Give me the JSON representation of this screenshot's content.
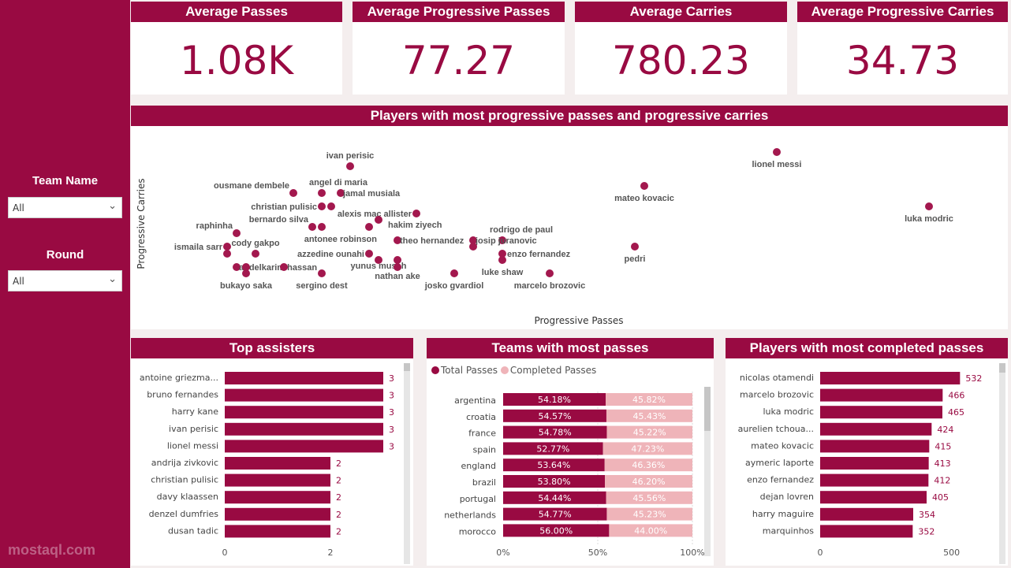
{
  "filters": [
    {
      "label": "Team Name",
      "value": "All"
    },
    {
      "label": "Round",
      "value": "All"
    }
  ],
  "kpis": [
    {
      "title": "Average Passes",
      "value": "1.08K"
    },
    {
      "title": "Average Progressive Passes",
      "value": "77.27"
    },
    {
      "title": "Average Carries",
      "value": "780.23"
    },
    {
      "title": "Average Progressive Carries",
      "value": "34.73"
    }
  ],
  "colors": {
    "primary": "#990a42",
    "secondary": "#efb4b9",
    "dot": "#a3184e"
  },
  "chart_data": [
    {
      "type": "scatter",
      "title": "Players with most progressive passes and progressive carries",
      "xlabel": "Progressive Passes",
      "ylabel": "Progressive Carries",
      "note": "values estimated on relative scale (no axis ticks shown)",
      "xlim": [
        0,
        110
      ],
      "ylim": [
        0,
        100
      ],
      "points": [
        {
          "label": "ivan perisic",
          "x": 26.4,
          "y": 84.5,
          "pos": "above"
        },
        {
          "label": "ousmane dembele",
          "x": 19.2,
          "y": 67.5,
          "pos": "aboveleft"
        },
        {
          "label": "angel di maria",
          "x": 22.8,
          "y": 67.5,
          "pos": "aboveright"
        },
        {
          "label": "jamal musiala",
          "x": 25.2,
          "y": 67.5,
          "pos": "right"
        },
        {
          "label": "christian pulisic",
          "x": 22.8,
          "y": 59,
          "pos": "left"
        },
        {
          "label": "",
          "x": 24.0,
          "y": 59,
          "pos": "none"
        },
        {
          "label": "alexis mac allister",
          "x": 34.8,
          "y": 54.5,
          "pos": "left"
        },
        {
          "label": "hakim ziyech",
          "x": 30.0,
          "y": 50.5,
          "pos": "belowright"
        },
        {
          "label": "bernardo silva",
          "x": 21.6,
          "y": 46,
          "pos": "aboveleft"
        },
        {
          "label": "",
          "x": 22.8,
          "y": 46,
          "pos": "none"
        },
        {
          "label": "antonee robinson",
          "x": 28.8,
          "y": 46,
          "pos": "belowleft"
        },
        {
          "label": "theo hernandez",
          "x": 32.4,
          "y": 37.5,
          "pos": "aboveright"
        },
        {
          "label": "raphinha",
          "x": 12.0,
          "y": 42,
          "pos": "aboveleft"
        },
        {
          "label": "ismaila sarr",
          "x": 10.8,
          "y": 33.5,
          "pos": "left"
        },
        {
          "label": "",
          "x": 10.8,
          "y": 29,
          "pos": "none"
        },
        {
          "label": "cody gakpo",
          "x": 14.4,
          "y": 29,
          "pos": "above"
        },
        {
          "label": "rodrigo de paul",
          "x": 45.7,
          "y": 37.5,
          "pos": "aboveright"
        },
        {
          "label": "josip juranovic",
          "x": 42.0,
          "y": 37.5,
          "pos": "right"
        },
        {
          "label": "",
          "x": 42.0,
          "y": 33.5,
          "pos": "none"
        },
        {
          "label": "enzo fernandez",
          "x": 45.7,
          "y": 29,
          "pos": "left"
        },
        {
          "label": "luke shaw",
          "x": 45.7,
          "y": 25,
          "pos": "below"
        },
        {
          "label": "azzedine ounahi",
          "x": 28.8,
          "y": 29,
          "pos": "right"
        },
        {
          "label": "yunus musah",
          "x": 30.0,
          "y": 25,
          "pos": "below"
        },
        {
          "label": "",
          "x": 32.4,
          "y": 25,
          "pos": "none"
        },
        {
          "label": "nathan ake",
          "x": 32.4,
          "y": 20.5,
          "pos": "below"
        },
        {
          "label": "abdelkarim hassan",
          "x": 12.0,
          "y": 20.5,
          "pos": "right"
        },
        {
          "label": "",
          "x": 13.2,
          "y": 20.5,
          "pos": "none"
        },
        {
          "label": "",
          "x": 18.0,
          "y": 20.5,
          "pos": "none"
        },
        {
          "label": "bukayo saka",
          "x": 13.2,
          "y": 16.5,
          "pos": "below"
        },
        {
          "label": "sergino dest",
          "x": 22.8,
          "y": 16.5,
          "pos": "below"
        },
        {
          "label": "josko gvardiol",
          "x": 39.6,
          "y": 16.5,
          "pos": "below"
        },
        {
          "label": "marcelo brozovic",
          "x": 51.7,
          "y": 16.5,
          "pos": "below"
        },
        {
          "label": "mateo kovacic",
          "x": 63.7,
          "y": 72,
          "pos": "below"
        },
        {
          "label": "lionel messi",
          "x": 80.5,
          "y": 93.5,
          "pos": "below"
        },
        {
          "label": "luka modric",
          "x": 99.8,
          "y": 59,
          "pos": "below"
        },
        {
          "label": "pedri",
          "x": 62.5,
          "y": 33.5,
          "pos": "below"
        }
      ]
    },
    {
      "type": "bar",
      "title": "Top assisters",
      "categories": [
        "antoine griezma...",
        "bruno fernandes",
        "harry kane",
        "ivan perisic",
        "lionel messi",
        "andrija zivkovic",
        "christian pulisic",
        "davy klaassen",
        "denzel dumfries",
        "dusan tadic"
      ],
      "values": [
        3,
        3,
        3,
        3,
        3,
        2,
        2,
        2,
        2,
        2
      ],
      "xticks": [
        "0",
        "2"
      ],
      "xlim": [
        0,
        3.5
      ]
    },
    {
      "type": "bar",
      "title": "Teams with most passes",
      "stacked100": true,
      "legend": [
        "Total Passes",
        "Completed Passes"
      ],
      "categories": [
        "argentina",
        "croatia",
        "france",
        "spain",
        "england",
        "brazil",
        "portugal",
        "netherlands",
        "morocco"
      ],
      "series": [
        {
          "name": "Total Passes",
          "values": [
            "54.18%",
            "54.57%",
            "54.78%",
            "52.77%",
            "53.64%",
            "53.80%",
            "54.44%",
            "54.77%",
            "56.00%"
          ]
        },
        {
          "name": "Completed Passes",
          "values": [
            "45.82%",
            "45.43%",
            "45.22%",
            "47.23%",
            "46.36%",
            "46.20%",
            "45.56%",
            "45.23%",
            "44.00%"
          ]
        }
      ],
      "xticks": [
        "0%",
        "50%",
        "100%"
      ]
    },
    {
      "type": "bar",
      "title": "Players with most completed passes",
      "categories": [
        "nicolas otamendi",
        "marcelo brozovic",
        "luka modric",
        "aurelien tchoua...",
        "mateo kovacic",
        "aymeric laporte",
        "enzo fernandez",
        "dejan lovren",
        "harry maguire",
        "marquinhos"
      ],
      "values": [
        532,
        466,
        465,
        424,
        415,
        413,
        412,
        405,
        354,
        352
      ],
      "xticks": [
        "0",
        "500"
      ],
      "xlim": [
        0,
        600
      ]
    }
  ],
  "watermark": "mostaql.com"
}
